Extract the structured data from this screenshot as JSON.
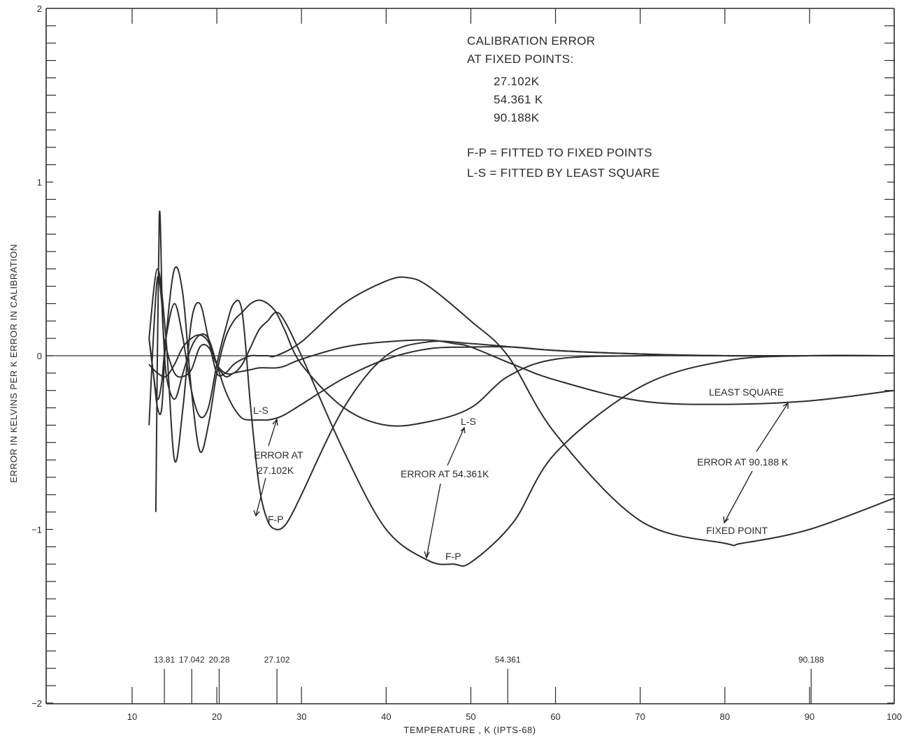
{
  "chart_data": {
    "type": "line",
    "title": "",
    "xlabel": "TEMPERATURE , K (IPTS-68)",
    "ylabel": "ERROR IN KELVINS PER K ERROR IN CALIBRATION",
    "xlim": [
      0,
      100
    ],
    "ylim": [
      -2,
      2
    ],
    "x_ticks": [
      10,
      20,
      30,
      40,
      50,
      60,
      70,
      80,
      90,
      100
    ],
    "y_ticks": [
      2,
      1,
      0,
      -1,
      -2
    ],
    "grid": false,
    "fixed_point_markers": [
      {
        "x": 13.81,
        "label": "13.81"
      },
      {
        "x": 17.042,
        "label": "17.042"
      },
      {
        "x": 20.28,
        "label": "20.28"
      },
      {
        "x": 27.102,
        "label": "27.102"
      },
      {
        "x": 54.361,
        "label": "54.361"
      },
      {
        "x": 90.188,
        "label": "90.188"
      }
    ],
    "notes": {
      "line1": "CALIBRATION ERROR",
      "line2": "AT FIXED POINTS:",
      "points": [
        "27.102K",
        "54.361 K",
        "90.188K"
      ],
      "legend_fp": "F-P = FITTED TO FIXED POINTS",
      "legend_ls": "L-S = FITTED BY LEAST SQUARE"
    },
    "annotations": {
      "ls_27": "L-S",
      "error_at_27_line1": "ERROR AT",
      "error_at_27_line2": "27.102K",
      "fp_27": "F-P",
      "ls_54": "L-S",
      "error_at_54": "ERROR AT 54.361K",
      "fp_54": "F-P",
      "least_square": "LEAST SQUARE",
      "error_at_90": "ERROR AT 90.188 K",
      "fixed_point": "FIXED POINT"
    },
    "series": [
      {
        "x": [
          12,
          12.5,
          13,
          13.5,
          14,
          15,
          16,
          17,
          18,
          19,
          20,
          21,
          22,
          23,
          24,
          25,
          26,
          27,
          28,
          30,
          35,
          40,
          45,
          50,
          55,
          60,
          70,
          80,
          90,
          100
        ],
        "y": [
          -0.4,
          0.1,
          0.45,
          0.3,
          -0.1,
          -0.25,
          -0.1,
          0.05,
          0.12,
          0.1,
          -0.05,
          -0.2,
          -0.3,
          -0.36,
          -0.37,
          -0.37,
          -0.37,
          -0.36,
          -0.34,
          -0.28,
          -0.13,
          -0.02,
          0.04,
          0.05,
          0.05,
          0.03,
          0.01,
          0.0,
          0.0,
          0.0
        ]
      },
      {
        "x": [
          12,
          12.5,
          13,
          13.5,
          14,
          15,
          16,
          17,
          18,
          19,
          20,
          21,
          22,
          23,
          24,
          25,
          26,
          27,
          28,
          29,
          30,
          35,
          40,
          45,
          50,
          55,
          60,
          70,
          80,
          90,
          100
        ],
        "y": [
          0.1,
          -0.1,
          -0.25,
          -0.15,
          0.1,
          0.3,
          0.1,
          -0.2,
          -0.35,
          -0.3,
          -0.05,
          0.15,
          0.3,
          0.25,
          -0.3,
          -0.75,
          -0.95,
          -1.0,
          -0.98,
          -0.9,
          -0.8,
          -0.3,
          0.0,
          0.08,
          0.07,
          0.05,
          0.03,
          0.01,
          0.0,
          0.0,
          0.0
        ]
      },
      {
        "x": [
          12.8,
          13.2,
          13.6,
          14,
          15,
          16,
          17,
          18,
          19,
          20,
          21,
          22,
          23,
          24,
          25,
          26,
          27,
          28,
          30,
          35,
          40,
          45,
          48,
          50,
          55,
          60,
          70,
          80,
          90,
          100
        ],
        "y": [
          -0.9,
          0.8,
          0.2,
          0.05,
          -0.1,
          -0.12,
          -0.08,
          0.05,
          0.05,
          -0.05,
          -0.12,
          -0.1,
          -0.09,
          -0.08,
          -0.07,
          -0.07,
          -0.07,
          -0.06,
          -0.02,
          0.05,
          0.08,
          0.09,
          0.07,
          0.05,
          -0.05,
          -0.14,
          -0.26,
          -0.28,
          -0.26,
          -0.2
        ]
      },
      {
        "x": [
          12,
          13,
          14,
          15,
          16,
          17,
          18,
          19,
          20,
          21,
          22,
          23,
          24,
          25,
          26,
          27,
          28,
          30,
          35,
          40,
          45,
          48,
          50,
          55,
          60,
          70,
          80,
          90,
          100
        ],
        "y": [
          -0.05,
          -0.1,
          -0.12,
          -0.05,
          0.05,
          0.1,
          0.12,
          0.08,
          -0.05,
          -0.1,
          -0.1,
          -0.05,
          0.05,
          0.15,
          0.2,
          0.25,
          0.2,
          0.0,
          -0.55,
          -1.0,
          -1.18,
          -1.2,
          -1.19,
          -0.96,
          -0.56,
          -0.18,
          -0.03,
          0.0,
          0.0
        ]
      },
      {
        "x": [
          12,
          12.5,
          13,
          13.5,
          14,
          15,
          16,
          17,
          18,
          19,
          20,
          21,
          22,
          23,
          24,
          25,
          26,
          27,
          28,
          30,
          35,
          40,
          45,
          50,
          54.361,
          60,
          70,
          80,
          90,
          100
        ],
        "y": [
          0.1,
          -0.1,
          -0.3,
          -0.3,
          0.1,
          0.5,
          0.35,
          -0.2,
          -0.55,
          -0.4,
          -0.1,
          0.1,
          0.2,
          0.25,
          0.3,
          0.32,
          0.3,
          0.25,
          0.15,
          -0.05,
          -0.3,
          -0.4,
          -0.38,
          -0.3,
          -0.12,
          -0.02,
          0.0,
          0.0,
          0.0,
          0.0
        ]
      },
      {
        "x": [
          12,
          13,
          14,
          15,
          16,
          17,
          18,
          19,
          20,
          21,
          22,
          23,
          24,
          25,
          26,
          27,
          30,
          35,
          40,
          42.5,
          45,
          50,
          54.361,
          60,
          70,
          80,
          82,
          90,
          100
        ],
        "y": [
          0.1,
          0.5,
          0.1,
          -0.6,
          -0.3,
          0.2,
          0.3,
          0.1,
          -0.1,
          -0.1,
          -0.05,
          -0.02,
          0.0,
          0.0,
          0.0,
          0.0,
          0.08,
          0.3,
          0.43,
          0.45,
          0.4,
          0.2,
          0.0,
          -0.45,
          -0.95,
          -1.08,
          -1.08,
          -1.0,
          -0.82
        ]
      }
    ]
  }
}
